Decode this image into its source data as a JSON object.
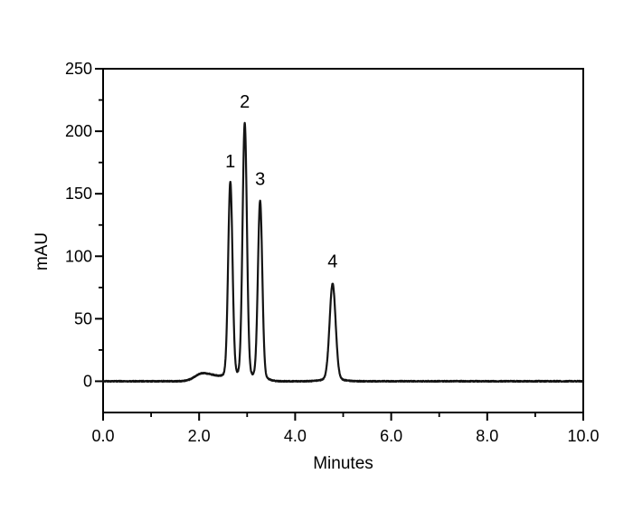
{
  "chart_data": {
    "type": "line",
    "title": "",
    "xlabel": "Minutes",
    "ylabel": "mAU",
    "xlim": [
      0.0,
      10.0
    ],
    "ylim": [
      -25,
      250
    ],
    "x_major_ticks": [
      0.0,
      2.0,
      4.0,
      6.0,
      8.0,
      10.0
    ],
    "x_tick_labels": [
      "0.0",
      "2.0",
      "4.0",
      "6.0",
      "8.0",
      "10.0"
    ],
    "x_minor_ticks": [
      1.0,
      3.0,
      5.0,
      7.0,
      9.0
    ],
    "y_major_ticks": [
      0,
      50,
      100,
      150,
      200,
      250
    ],
    "y_tick_labels": [
      "0",
      "50",
      "100",
      "150",
      "200",
      "250"
    ],
    "y_minor_ticks": [
      25,
      75,
      125,
      175,
      225
    ],
    "grid": false,
    "legend": null,
    "frame": "full-box",
    "background_color": "#ffffff",
    "line_color": "#141414",
    "axis_color": "#000000",
    "series_name": "chromatogram-trace",
    "peaks": [
      {
        "label": "1",
        "rt_min": 2.65,
        "height_mau": 158,
        "sigma_min": 0.045
      },
      {
        "label": "2",
        "rt_min": 2.95,
        "height_mau": 206,
        "sigma_min": 0.045
      },
      {
        "label": "3",
        "rt_min": 3.27,
        "height_mau": 144,
        "sigma_min": 0.045
      },
      {
        "label": "4",
        "rt_min": 4.78,
        "height_mau": 78,
        "sigma_min": 0.062
      }
    ],
    "baseline_mau": 0,
    "baseline_disturbance": {
      "center_min": 2.08,
      "height_mau": 6.5,
      "rise_sigma_min": 0.16,
      "fall_sigma_min": 0.3
    },
    "noise_amplitude_mau": 0.8
  }
}
